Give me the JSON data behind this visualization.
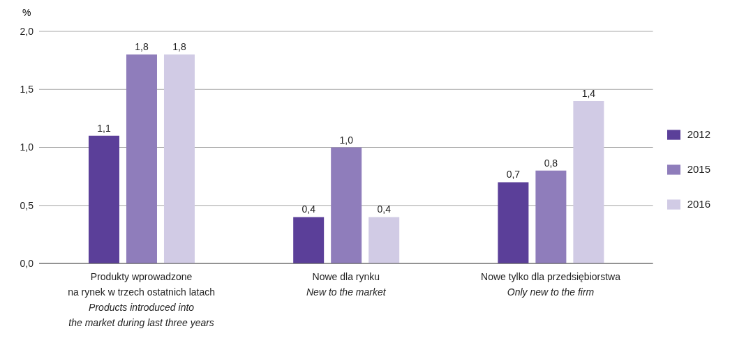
{
  "chart_data": {
    "type": "bar",
    "ylabel": "%",
    "categories": [
      "Produkty wprowadzone\nna rynek w trzech ostatnich latach\nProducts introduced into\nthe market during last three years",
      "Nowe dla rynku\nNew to the market",
      "Nowe tylko dla przedsiębiorstwa\nOnly new to the firm"
    ],
    "series": [
      {
        "name": "2012",
        "color": "#5b3f99",
        "values": [
          1.1,
          0.4,
          0.7
        ],
        "value_labels": [
          "1,1",
          "0,4",
          "0,7"
        ]
      },
      {
        "name": "2015",
        "color": "#8f7dbb",
        "values": [
          1.8,
          1.0,
          0.8
        ],
        "value_labels": [
          "1,8",
          "1,0",
          "0,8"
        ]
      },
      {
        "name": "2016",
        "color": "#d1cbe5",
        "values": [
          1.8,
          0.4,
          1.4
        ],
        "value_labels": [
          "1,8",
          "0,4",
          "1,4"
        ]
      }
    ],
    "ylim": [
      0,
      2
    ],
    "yticks": [
      {
        "value": 0,
        "label": "0,0"
      },
      {
        "value": 0.5,
        "label": "0,5"
      },
      {
        "value": 1,
        "label": "1,0"
      },
      {
        "value": 1.5,
        "label": "1,5"
      },
      {
        "value": 2,
        "label": "2,0"
      }
    ],
    "grid": "y",
    "legend": "right"
  }
}
